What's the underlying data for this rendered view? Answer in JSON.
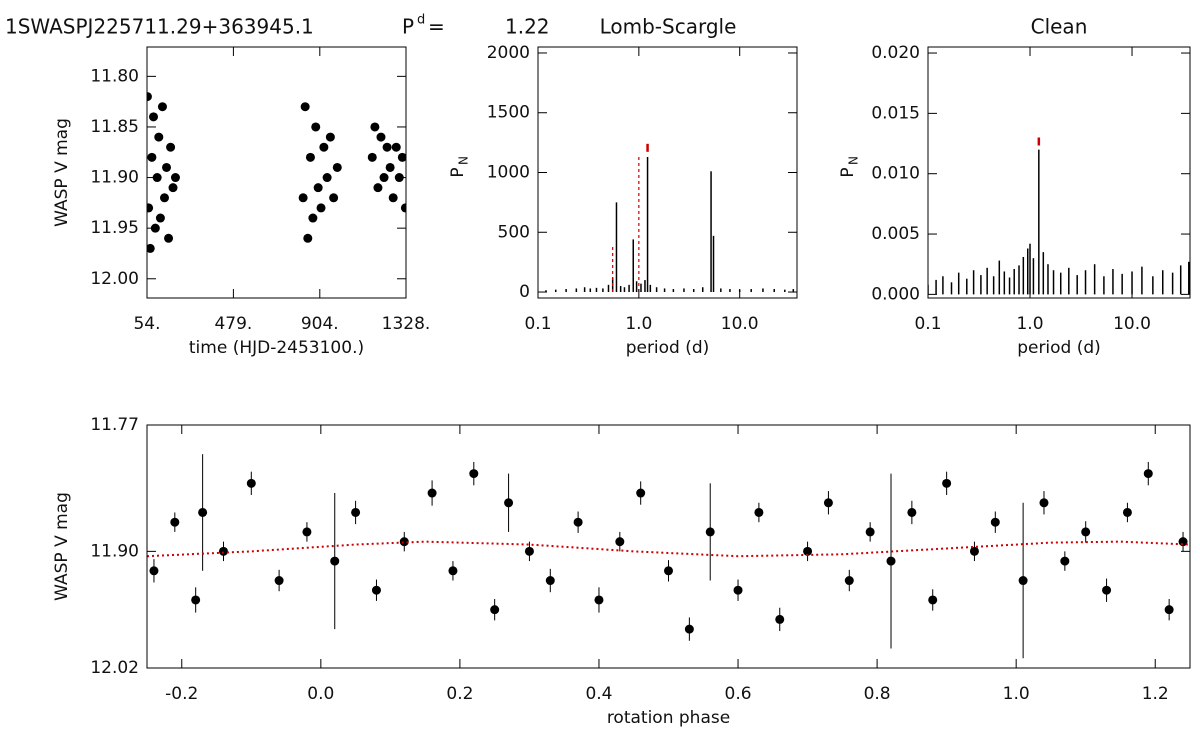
{
  "header": {
    "object": "1SWASPJ225711.29+363945.1",
    "period_symbol": "P",
    "period_sup": "d",
    "equals": "=",
    "period": 1.22
  },
  "chart_data": [
    {
      "type": "scatter",
      "x_label": "time (HJD-2453100.)",
      "y_label": "WASP V mag",
      "xlim": [
        54,
        1328
      ],
      "ylim": [
        11.771,
        12.019
      ],
      "y_inverted": true,
      "log_x": false,
      "xticks": [
        {
          "value": 54,
          "label": "54."
        },
        {
          "value": 479,
          "label": "479."
        },
        {
          "value": 904,
          "label": "904."
        },
        {
          "value": 1328,
          "label": "1328."
        }
      ],
      "yticks": [
        {
          "value": 11.8,
          "label": "11.80"
        },
        {
          "value": 11.85,
          "label": "11.85"
        },
        {
          "value": 11.9,
          "label": "11.90"
        },
        {
          "value": 11.95,
          "label": "11.95"
        },
        {
          "value": 12.0,
          "label": "12.00"
        }
      ],
      "color": "#000000",
      "x": [
        56,
        62,
        70,
        78,
        86,
        95,
        104,
        112,
        120,
        130,
        140,
        150,
        160,
        170,
        182,
        194,
        822,
        832,
        845,
        858,
        870,
        884,
        896,
        910,
        924,
        940,
        956,
        972,
        990,
        1162,
        1175,
        1190,
        1205,
        1220,
        1235,
        1250,
        1265,
        1280,
        1295,
        1310,
        1325
      ],
      "values": [
        11.82,
        11.93,
        11.97,
        11.88,
        11.84,
        11.95,
        11.9,
        11.86,
        11.94,
        11.83,
        11.92,
        11.89,
        11.96,
        11.87,
        11.91,
        11.9,
        11.92,
        11.83,
        11.96,
        11.88,
        11.94,
        11.85,
        11.91,
        11.93,
        11.87,
        11.9,
        11.86,
        11.92,
        11.89,
        11.88,
        11.85,
        11.91,
        11.86,
        11.9,
        11.87,
        11.89,
        11.92,
        11.87,
        11.9,
        11.88,
        11.93
      ]
    },
    {
      "type": "spike",
      "title": "Lomb-Scargle",
      "x_label": "period (d)",
      "y_label": "P",
      "y_label_sub": "N",
      "xlim": [
        0.1,
        37
      ],
      "ylim": [
        -50,
        2050
      ],
      "log_x": true,
      "xticks": [
        0.1,
        {
          "value": 1,
          "label": "1.0"
        },
        {
          "value": 10,
          "label": "10.0"
        }
      ],
      "yticks": [
        0,
        500,
        1000,
        1500,
        2000
      ],
      "color": "#000000",
      "marker_color": "#cc0000",
      "x": [
        0.12,
        0.15,
        0.19,
        0.24,
        0.29,
        0.33,
        0.38,
        0.44,
        0.5,
        0.55,
        0.6,
        0.66,
        0.72,
        0.8,
        0.88,
        0.95,
        1.05,
        1.15,
        1.22,
        1.3,
        1.5,
        1.8,
        2.2,
        2.8,
        3.5,
        4.3,
        5.2,
        5.5,
        6.5,
        8,
        10,
        13,
        17,
        22,
        28,
        34
      ],
      "values": [
        15,
        20,
        25,
        30,
        40,
        30,
        35,
        30,
        60,
        120,
        750,
        50,
        40,
        60,
        440,
        90,
        70,
        100,
        1130,
        60,
        40,
        30,
        25,
        30,
        25,
        40,
        1010,
        470,
        30,
        25,
        20,
        25,
        30,
        25,
        20,
        25
      ],
      "alias_x": [
        0.55,
        1.0
      ],
      "alias_values": [
        380,
        1150
      ],
      "peak_x": 1.22,
      "peak_value": 1240
    },
    {
      "type": "spike",
      "title": "Clean",
      "x_label": "period (d)",
      "y_label": "P",
      "y_label_sub": "N",
      "xlim": [
        0.1,
        37
      ],
      "ylim": [
        -0.0003,
        0.0205
      ],
      "log_x": true,
      "xticks": [
        0.1,
        {
          "value": 1,
          "label": "1.0"
        },
        {
          "value": 10,
          "label": "10.0"
        }
      ],
      "yticks": [
        {
          "value": 0,
          "label": "0.000"
        },
        0.005,
        {
          "value": 0.01,
          "label": "0.010"
        },
        0.015,
        {
          "value": 0.02,
          "label": "0.020"
        }
      ],
      "color": "#000000",
      "marker_color": "#cc0000",
      "x": [
        0.1,
        0.12,
        0.14,
        0.17,
        0.2,
        0.24,
        0.28,
        0.33,
        0.38,
        0.44,
        0.5,
        0.56,
        0.63,
        0.7,
        0.78,
        0.86,
        0.95,
        1.0,
        1.08,
        1.22,
        1.35,
        1.5,
        1.7,
        2,
        2.4,
        2.9,
        3.5,
        4.3,
        5.3,
        6.5,
        8,
        10,
        12.5,
        16,
        20,
        25,
        30,
        36
      ],
      "values": [
        0.0008,
        0.0012,
        0.0015,
        0.001,
        0.0018,
        0.0013,
        0.002,
        0.0016,
        0.0022,
        0.0015,
        0.0028,
        0.0019,
        0.0014,
        0.0021,
        0.0024,
        0.0031,
        0.0038,
        0.0042,
        0.003,
        0.012,
        0.0035,
        0.0025,
        0.002,
        0.0018,
        0.0022,
        0.0016,
        0.002,
        0.0025,
        0.0015,
        0.0021,
        0.0017,
        0.0019,
        0.0023,
        0.0015,
        0.002,
        0.0018,
        0.0024,
        0.0027
      ],
      "peak_x": 1.22,
      "peak_value": 0.013
    },
    {
      "type": "errorbar",
      "x_label": "rotation phase",
      "y_label": "WASP V mag",
      "xlim": [
        -0.25,
        1.25
      ],
      "ylim": [
        11.77,
        12.02
      ],
      "y_inverted": true,
      "log_x": false,
      "xticks": [
        -0.2,
        {
          "value": 0,
          "label": "0.0"
        },
        0.2,
        0.4,
        0.6,
        0.8,
        {
          "value": 1,
          "label": "1.0"
        },
        1.2
      ],
      "yticks": [
        11.77,
        {
          "value": 11.9,
          "label": "11.90"
        },
        12.02
      ],
      "color": "#000000",
      "model_color": "#cc0000",
      "x": [
        -0.24,
        -0.21,
        -0.18,
        -0.17,
        -0.14,
        -0.1,
        -0.06,
        -0.02,
        0.02,
        0.05,
        0.08,
        0.12,
        0.16,
        0.19,
        0.22,
        0.25,
        0.27,
        0.3,
        0.33,
        0.37,
        0.4,
        0.43,
        0.46,
        0.5,
        0.53,
        0.56,
        0.6,
        0.63,
        0.66,
        0.7,
        0.73,
        0.76,
        0.79,
        0.82,
        0.85,
        0.88,
        0.9,
        0.94,
        0.97,
        1.01,
        1.04,
        1.07,
        1.1,
        1.13,
        1.16,
        1.19,
        1.22,
        1.24
      ],
      "values": [
        11.92,
        11.87,
        11.95,
        11.86,
        11.9,
        11.83,
        11.93,
        11.88,
        11.91,
        11.86,
        11.94,
        11.89,
        11.84,
        11.92,
        11.82,
        11.96,
        11.85,
        11.9,
        11.93,
        11.87,
        11.95,
        11.89,
        11.84,
        11.92,
        11.98,
        11.88,
        11.94,
        11.86,
        11.97,
        11.9,
        11.85,
        11.93,
        11.88,
        11.91,
        11.86,
        11.95,
        11.83,
        11.9,
        11.87,
        11.93,
        11.85,
        11.91,
        11.88,
        11.94,
        11.86,
        11.82,
        11.96,
        11.89
      ],
      "errors": [
        0.012,
        0.01,
        0.013,
        0.06,
        0.01,
        0.012,
        0.011,
        0.01,
        0.07,
        0.012,
        0.011,
        0.01,
        0.013,
        0.01,
        0.012,
        0.011,
        0.03,
        0.01,
        0.012,
        0.011,
        0.013,
        0.01,
        0.012,
        0.011,
        0.012,
        0.05,
        0.011,
        0.01,
        0.012,
        0.01,
        0.012,
        0.011,
        0.01,
        0.09,
        0.012,
        0.011,
        0.012,
        0.01,
        0.011,
        0.08,
        0.012,
        0.01,
        0.011,
        0.012,
        0.01,
        0.012,
        0.011,
        0.01
      ],
      "model_x": [
        -0.25,
        -0.1,
        0.05,
        0.15,
        0.3,
        0.45,
        0.6,
        0.75,
        0.9,
        1.05,
        1.15,
        1.25
      ],
      "model_values": [
        11.905,
        11.9,
        11.893,
        11.89,
        11.893,
        11.9,
        11.905,
        11.903,
        11.897,
        11.891,
        11.89,
        11.893
      ]
    }
  ]
}
